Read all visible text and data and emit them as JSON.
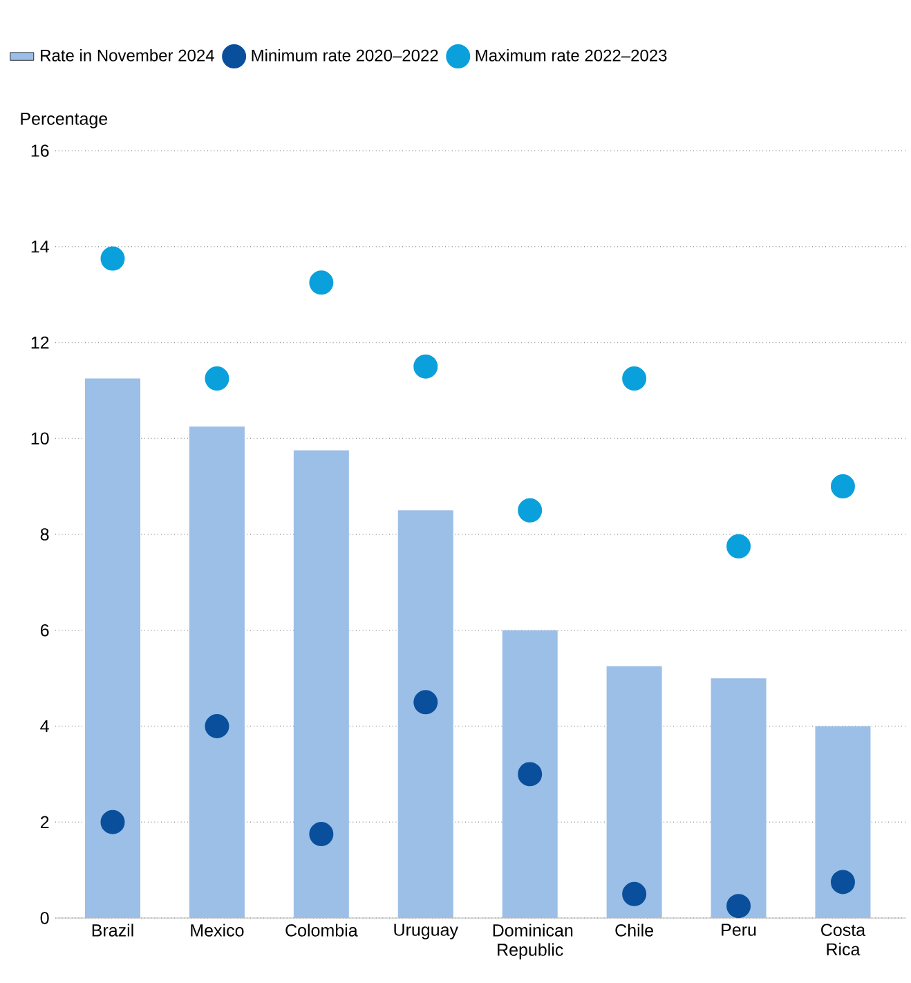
{
  "chart_data": {
    "type": "bar",
    "ylabel": "Percentage",
    "categories": [
      "Brazil",
      "Mexico",
      "Colombia",
      "Uruguay",
      "Dominican Republic",
      "Chile",
      "Peru",
      "Costa Rica"
    ],
    "series": [
      {
        "name": "Rate in November 2024",
        "color": "#9bbfe6",
        "values": [
          11.25,
          10.25,
          9.75,
          8.5,
          6.0,
          5.25,
          5.0,
          4.0
        ]
      },
      {
        "name": "Minimum rate 2020–2022",
        "type": "scatter",
        "color": "#0a4f9c",
        "x": [
          "Brazil",
          "Mexico",
          "Colombia",
          "Uruguay",
          "Dominican Republic",
          "Chile",
          "Peru",
          "Costa Rica"
        ],
        "values": [
          2.0,
          4.0,
          1.75,
          4.5,
          3.0,
          0.5,
          0.25,
          0.75
        ]
      },
      {
        "name": "Maximum rate 2022–2023",
        "type": "scatter",
        "color": "#0aa0dc",
        "x": [
          "Brazil",
          "Mexico",
          "Colombia",
          "Uruguay",
          "Dominican Republic",
          "Chile",
          "Peru",
          "Costa Rica"
        ],
        "values": [
          13.75,
          11.25,
          13.25,
          11.5,
          8.5,
          11.25,
          7.75,
          9.0
        ]
      }
    ],
    "ylim": [
      0,
      16
    ],
    "yticks": [
      0,
      2,
      4,
      6,
      8,
      10,
      12,
      14,
      16
    ],
    "grid": "y",
    "legend": "top"
  }
}
